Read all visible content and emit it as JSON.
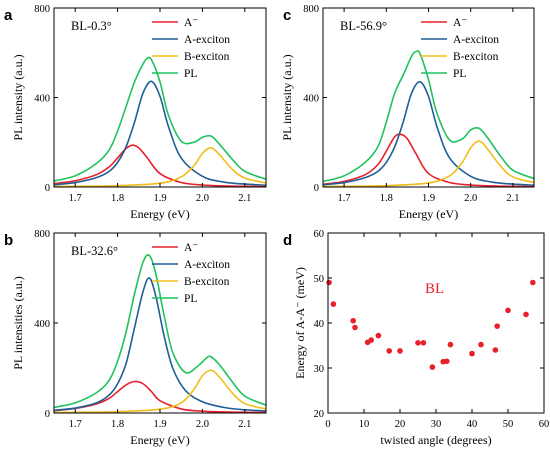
{
  "panel_letters": [
    "a",
    "c",
    "b",
    "d"
  ],
  "chart_data": [
    {
      "id": "a",
      "type": "line",
      "title": "BL-0.3°",
      "xlabel": "Energy (eV)",
      "ylabel": "PL intensity (a.u.)",
      "xlim": [
        1.65,
        2.15
      ],
      "ylim": [
        0,
        800
      ],
      "xticks": [
        "1.7",
        "1.8",
        "1.9",
        "2.0",
        "2.1"
      ],
      "yticks": [
        "0",
        "400",
        "800"
      ],
      "grid": false,
      "legend": "top-right",
      "series": [
        {
          "name": "A⁻",
          "color": "#e8202a",
          "x": [
            1.65,
            1.7,
            1.75,
            1.78,
            1.8,
            1.82,
            1.835,
            1.85,
            1.87,
            1.9,
            1.95,
            2.0,
            2.05,
            2.1,
            2.15
          ],
          "y": [
            15,
            28,
            55,
            90,
            130,
            172,
            187,
            175,
            130,
            60,
            20,
            9,
            5,
            3,
            2
          ]
        },
        {
          "name": "A-exciton",
          "color": "#1f5f96",
          "x": [
            1.65,
            1.7,
            1.75,
            1.78,
            1.8,
            1.82,
            1.84,
            1.86,
            1.88,
            1.9,
            1.92,
            1.95,
            2.0,
            2.05,
            2.1,
            2.15
          ],
          "y": [
            10,
            20,
            42,
            70,
            110,
            180,
            290,
            420,
            472,
            405,
            270,
            130,
            48,
            22,
            13,
            8
          ]
        },
        {
          "name": "B-exciton",
          "color": "#f2bd1a",
          "x": [
            1.65,
            1.7,
            1.8,
            1.9,
            1.95,
            1.98,
            2.0,
            2.02,
            2.04,
            2.07,
            2.1,
            2.15
          ],
          "y": [
            2,
            3,
            6,
            17,
            45,
            95,
            150,
            175,
            145,
            80,
            40,
            18
          ]
        },
        {
          "name": "PL",
          "color": "#1ec35c",
          "x": [
            1.65,
            1.7,
            1.75,
            1.78,
            1.8,
            1.82,
            1.84,
            1.86,
            1.87,
            1.88,
            1.9,
            1.92,
            1.95,
            1.98,
            2.0,
            2.02,
            2.04,
            2.07,
            2.1,
            2.15
          ],
          "y": [
            27,
            50,
            105,
            165,
            250,
            360,
            470,
            550,
            575,
            568,
            470,
            320,
            205,
            200,
            222,
            228,
            192,
            125,
            70,
            35
          ]
        }
      ]
    },
    {
      "id": "c",
      "type": "line",
      "title": "BL-56.9°",
      "xlabel": "Energy (eV)",
      "ylabel": "PL intensity (a.u.)",
      "xlim": [
        1.65,
        2.15
      ],
      "ylim": [
        0,
        800
      ],
      "xticks": [
        "1.7",
        "1.8",
        "1.9",
        "2.0",
        "2.1"
      ],
      "yticks": [
        "0",
        "400",
        "800"
      ],
      "grid": false,
      "legend": "top-right",
      "series": [
        {
          "name": "A⁻",
          "color": "#e8202a",
          "x": [
            1.65,
            1.7,
            1.75,
            1.78,
            1.8,
            1.82,
            1.835,
            1.85,
            1.87,
            1.9,
            1.95,
            2.0,
            2.05,
            2.1,
            2.15
          ],
          "y": [
            12,
            25,
            55,
            100,
            160,
            225,
            235,
            215,
            150,
            60,
            20,
            9,
            5,
            3,
            2
          ]
        },
        {
          "name": "A-exciton",
          "color": "#1f5f96",
          "x": [
            1.65,
            1.7,
            1.75,
            1.78,
            1.8,
            1.82,
            1.84,
            1.86,
            1.88,
            1.9,
            1.92,
            1.95,
            2.0,
            2.05,
            2.1,
            2.15
          ],
          "y": [
            10,
            20,
            42,
            70,
            110,
            180,
            290,
            420,
            470,
            405,
            270,
            130,
            48,
            22,
            13,
            8
          ]
        },
        {
          "name": "B-exciton",
          "color": "#f2bd1a",
          "x": [
            1.65,
            1.7,
            1.8,
            1.9,
            1.95,
            1.98,
            2.0,
            2.02,
            2.04,
            2.07,
            2.1,
            2.15
          ],
          "y": [
            2,
            3,
            6,
            18,
            50,
            110,
            175,
            205,
            170,
            95,
            45,
            20
          ]
        },
        {
          "name": "PL",
          "color": "#1ec35c",
          "x": [
            1.65,
            1.7,
            1.75,
            1.78,
            1.8,
            1.82,
            1.84,
            1.86,
            1.87,
            1.88,
            1.9,
            1.92,
            1.95,
            1.98,
            2.0,
            2.02,
            2.04,
            2.07,
            2.1,
            2.15
          ],
          "y": [
            25,
            50,
            110,
            180,
            290,
            420,
            500,
            585,
            605,
            595,
            480,
            330,
            210,
            215,
            255,
            262,
            220,
            140,
            75,
            38
          ]
        }
      ]
    },
    {
      "id": "b",
      "type": "line",
      "title": "BL-32.6°",
      "xlabel": "Energy (eV)",
      "ylabel": "PL intensities (a.u.)",
      "xlim": [
        1.65,
        2.15
      ],
      "ylim": [
        0,
        800
      ],
      "xticks": [
        "1.7",
        "1.8",
        "1.9",
        "2.0",
        "2.1"
      ],
      "yticks": [
        "0",
        "400",
        "800"
      ],
      "grid": false,
      "legend": "top-right",
      "series": [
        {
          "name": "A⁻",
          "color": "#e8202a",
          "x": [
            1.65,
            1.7,
            1.75,
            1.78,
            1.8,
            1.82,
            1.84,
            1.86,
            1.88,
            1.9,
            1.95,
            2.0,
            2.05,
            2.1,
            2.15
          ],
          "y": [
            10,
            20,
            40,
            65,
            95,
            125,
            140,
            130,
            95,
            55,
            18,
            8,
            5,
            3,
            2
          ]
        },
        {
          "name": "A-exciton",
          "color": "#1f5f96",
          "x": [
            1.65,
            1.7,
            1.75,
            1.78,
            1.8,
            1.82,
            1.84,
            1.86,
            1.875,
            1.89,
            1.91,
            1.93,
            1.96,
            2.0,
            2.05,
            2.1,
            2.15
          ],
          "y": [
            12,
            22,
            45,
            80,
            130,
            220,
            380,
            540,
            600,
            520,
            340,
            200,
            100,
            50,
            25,
            14,
            9
          ]
        },
        {
          "name": "B-exciton",
          "color": "#f2bd1a",
          "x": [
            1.65,
            1.7,
            1.8,
            1.9,
            1.95,
            1.98,
            2.0,
            2.02,
            2.04,
            2.07,
            2.1,
            2.15
          ],
          "y": [
            2,
            3,
            6,
            17,
            45,
            105,
            165,
            190,
            160,
            90,
            42,
            18
          ]
        },
        {
          "name": "PL",
          "color": "#1ec35c",
          "x": [
            1.65,
            1.7,
            1.75,
            1.78,
            1.8,
            1.82,
            1.84,
            1.86,
            1.875,
            1.89,
            1.91,
            1.93,
            1.96,
            1.99,
            2.01,
            2.02,
            2.04,
            2.07,
            2.1,
            2.15
          ],
          "y": [
            25,
            45,
            90,
            145,
            230,
            360,
            530,
            670,
            700,
            620,
            430,
            270,
            180,
            210,
            245,
            250,
            215,
            140,
            75,
            35
          ]
        }
      ]
    },
    {
      "id": "d",
      "type": "scatter",
      "title": "",
      "annotation": "BL",
      "annotation_color": "#e8202a",
      "xlabel": "twisted angle (degrees)",
      "ylabel": "Energy of A-A⁻ (meV)",
      "xlim": [
        0,
        60
      ],
      "ylim": [
        20,
        60
      ],
      "xticks": [
        "0",
        "10",
        "20",
        "30",
        "40",
        "50",
        "60"
      ],
      "yticks": [
        "20",
        "30",
        "40",
        "50",
        "60"
      ],
      "grid": false,
      "series": [
        {
          "color": "#e8202a",
          "x": [
            0.3,
            1.5,
            7.0,
            7.5,
            11.0,
            12.0,
            14.0,
            17.0,
            20.0,
            25.0,
            26.5,
            29.0,
            32.0,
            33.0,
            34.0,
            40.0,
            42.5,
            46.5,
            47.0,
            50.0,
            55.0,
            56.9
          ],
          "y": [
            49.0,
            44.2,
            40.5,
            39.0,
            35.7,
            36.2,
            37.2,
            33.8,
            33.8,
            35.6,
            35.6,
            30.2,
            31.4,
            31.5,
            35.2,
            33.2,
            35.2,
            34.0,
            39.3,
            42.8,
            41.9,
            49.0
          ]
        }
      ]
    }
  ]
}
